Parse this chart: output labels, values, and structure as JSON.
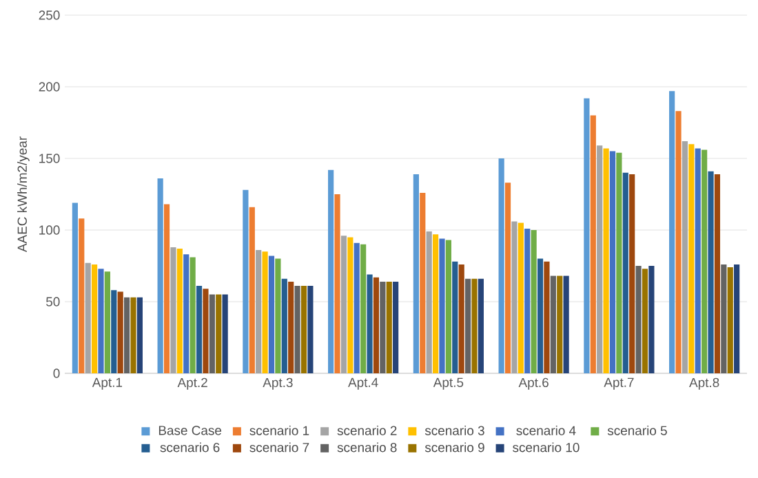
{
  "chart_data": {
    "type": "bar",
    "ylabel": "AAEC kWh/m2/year",
    "categories": [
      "Apt.1",
      "Apt.2",
      "Apt.3",
      "Apt.4",
      "Apt.5",
      "Apt.6",
      "Apt.7",
      "Apt.8"
    ],
    "series": [
      {
        "name": "Base Case",
        "color": "#5b9bd5",
        "values": [
          119,
          136,
          128,
          142,
          139,
          150,
          192,
          197
        ]
      },
      {
        "name": "scenario 1",
        "color": "#ed7d31",
        "values": [
          108,
          118,
          116,
          125,
          126,
          133,
          180,
          183
        ]
      },
      {
        "name": "scenario 2",
        "color": "#a5a5a5",
        "values": [
          77,
          88,
          86,
          96,
          99,
          106,
          159,
          162
        ]
      },
      {
        "name": "scenario 3",
        "color": "#ffc000",
        "values": [
          76,
          87,
          85,
          95,
          97,
          105,
          157,
          160
        ]
      },
      {
        "name": "scenario 4",
        "color": "#4472c4",
        "values": [
          73,
          83,
          82,
          91,
          94,
          101,
          155,
          157
        ]
      },
      {
        "name": "scenario 5",
        "color": "#70ad47",
        "values": [
          71,
          81,
          80,
          90,
          93,
          100,
          154,
          156
        ]
      },
      {
        "name": "scenario 6",
        "color": "#255e91",
        "values": [
          58,
          61,
          66,
          69,
          78,
          80,
          140,
          141
        ]
      },
      {
        "name": "scenario 7",
        "color": "#9e480e",
        "values": [
          57,
          59,
          64,
          67,
          76,
          78,
          139,
          139
        ]
      },
      {
        "name": "scenario 8",
        "color": "#636363",
        "values": [
          53,
          55,
          61,
          64,
          66,
          68,
          75,
          76
        ]
      },
      {
        "name": "scenario 9",
        "color": "#997300",
        "values": [
          53,
          55,
          61,
          64,
          66,
          68,
          73,
          74
        ]
      },
      {
        "name": "scenario 10",
        "color": "#264478",
        "values": [
          53,
          55,
          61,
          64,
          66,
          68,
          75,
          76
        ]
      }
    ],
    "ylim": [
      0,
      250
    ],
    "yticks": [
      0,
      50,
      100,
      150,
      200,
      250
    ],
    "grid": "y",
    "legend": "bottom"
  }
}
